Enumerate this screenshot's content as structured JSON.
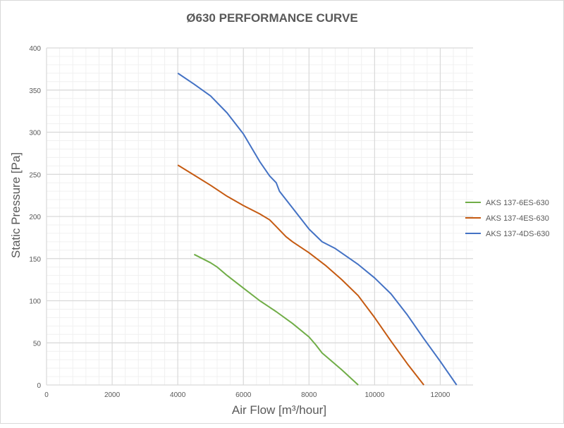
{
  "chart_data": {
    "type": "line",
    "title": "Ø630 PERFORMANCE CURVE",
    "xlabel": "Air Flow [m³/hour]",
    "ylabel": "Static Pressure [Pa]",
    "xlim": [
      0,
      13000
    ],
    "ylim": [
      0,
      400
    ],
    "xticks": [
      0,
      2000,
      4000,
      6000,
      8000,
      10000,
      12000
    ],
    "yticks": [
      0,
      50,
      100,
      150,
      200,
      250,
      300,
      350,
      400
    ],
    "grid": true,
    "legend_position": "right",
    "series": [
      {
        "name": "AKS 137-6ES-630",
        "color": "#70ad47",
        "x": [
          4500,
          5000,
          5200,
          5500,
          6000,
          6500,
          7000,
          7500,
          8000,
          8200,
          8400,
          9000,
          9500
        ],
        "y": [
          155,
          145,
          140,
          130,
          115,
          100,
          87,
          73,
          57,
          48,
          38,
          18,
          0
        ]
      },
      {
        "name": "AKS 137-4ES-630",
        "color": "#c55a11",
        "x": [
          4000,
          4500,
          5000,
          5500,
          6000,
          6500,
          6800,
          7000,
          7300,
          7500,
          8000,
          8500,
          9000,
          9500,
          10000,
          10500,
          11000,
          11500
        ],
        "y": [
          261,
          249,
          237,
          224,
          213,
          203,
          196,
          188,
          176,
          170,
          157,
          142,
          125,
          106,
          80,
          52,
          25,
          0
        ]
      },
      {
        "name": "AKS 137-4DS-630",
        "color": "#4472c4",
        "x": [
          4000,
          4500,
          5000,
          5500,
          6000,
          6500,
          6800,
          7000,
          7100,
          7500,
          8000,
          8400,
          8800,
          9500,
          10000,
          10500,
          11000,
          11500,
          12000,
          12500
        ],
        "y": [
          370,
          357,
          343,
          323,
          298,
          265,
          248,
          240,
          230,
          210,
          185,
          170,
          162,
          143,
          127,
          108,
          83,
          55,
          28,
          0
        ]
      }
    ]
  }
}
